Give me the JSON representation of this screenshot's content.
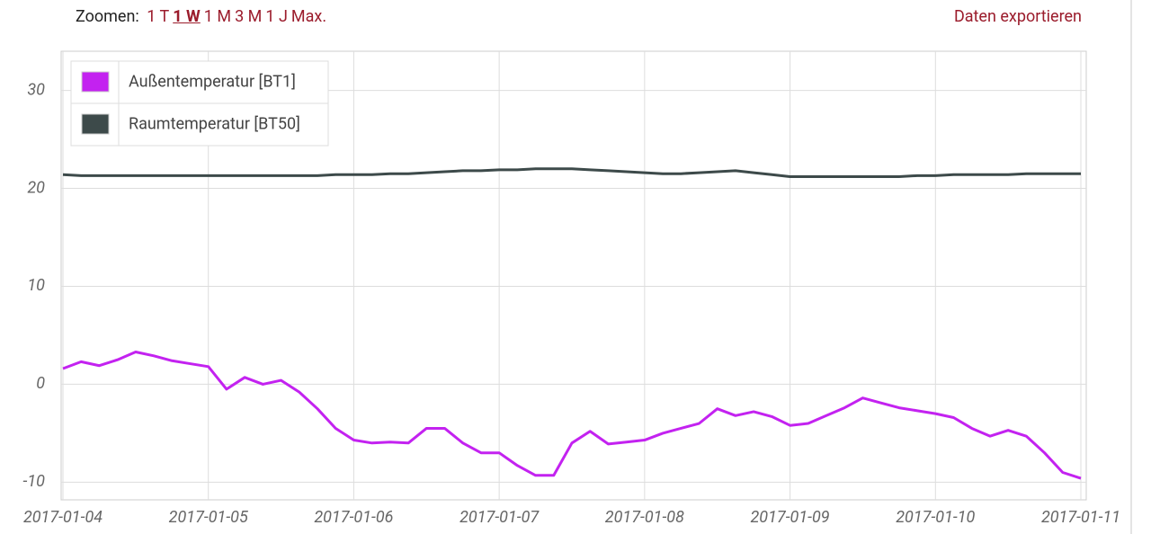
{
  "toolbar": {
    "zoom_label": "Zoomen:",
    "zoom_options": [
      "1 T",
      "1 W",
      "1 M",
      "3 M",
      "1 J",
      "Max."
    ],
    "export": "Daten exportieren"
  },
  "chart_data": {
    "type": "line",
    "categories": [
      "2017-01-04",
      null,
      null,
      null,
      null,
      null,
      null,
      null,
      "2017-01-05",
      null,
      null,
      null,
      null,
      null,
      null,
      null,
      "2017-01-06",
      null,
      null,
      null,
      null,
      null,
      null,
      null,
      "2017-01-07",
      null,
      null,
      null,
      null,
      null,
      null,
      null,
      "2017-01-08",
      null,
      null,
      null,
      null,
      null,
      null,
      null,
      "2017-01-09",
      null,
      null,
      null,
      null,
      null,
      null,
      null,
      "2017-01-10",
      null,
      null,
      null,
      null,
      null,
      null,
      null,
      "2017-01-11"
    ],
    "series": [
      {
        "name": "Außentemperatur [BT1]",
        "color": "#c322f0",
        "values": [
          1.6,
          2.3,
          1.9,
          2.5,
          3.3,
          2.9,
          2.4,
          2.1,
          1.8,
          -0.5,
          0.7,
          0.0,
          0.4,
          -0.8,
          -2.5,
          -4.5,
          -5.7,
          -6.0,
          -5.9,
          -6.0,
          -4.5,
          -4.5,
          -6.0,
          -7.0,
          -7.0,
          -8.3,
          -9.3,
          -9.3,
          -6.0,
          -4.8,
          -6.1,
          -5.9,
          -5.7,
          -5.0,
          -4.5,
          -4.0,
          -2.5,
          -3.2,
          -2.8,
          -3.3,
          -4.2,
          -4.0,
          -3.2,
          -2.4,
          -1.4,
          -1.9,
          -2.4,
          -2.7,
          -3.0,
          -3.4,
          -4.5,
          -5.3,
          -4.7,
          -5.3,
          -7.0,
          -9.0,
          -9.6
        ]
      },
      {
        "name": "Raumtemperatur [BT50]",
        "color": "#3d4a4a",
        "values": [
          21.4,
          21.3,
          21.3,
          21.3,
          21.3,
          21.3,
          21.3,
          21.3,
          21.3,
          21.3,
          21.3,
          21.3,
          21.3,
          21.3,
          21.3,
          21.4,
          21.4,
          21.4,
          21.5,
          21.5,
          21.6,
          21.7,
          21.8,
          21.8,
          21.9,
          21.9,
          22.0,
          22.0,
          22.0,
          21.9,
          21.8,
          21.7,
          21.6,
          21.5,
          21.5,
          21.6,
          21.7,
          21.8,
          21.6,
          21.4,
          21.2,
          21.2,
          21.2,
          21.2,
          21.2,
          21.2,
          21.2,
          21.3,
          21.3,
          21.4,
          21.4,
          21.4,
          21.4,
          21.5,
          21.5,
          21.5,
          21.5
        ]
      }
    ],
    "ylim": [
      -11.8,
      34
    ],
    "yticks": [
      -10,
      0,
      10,
      20,
      30
    ],
    "grid": true,
    "legend": "top-left"
  }
}
